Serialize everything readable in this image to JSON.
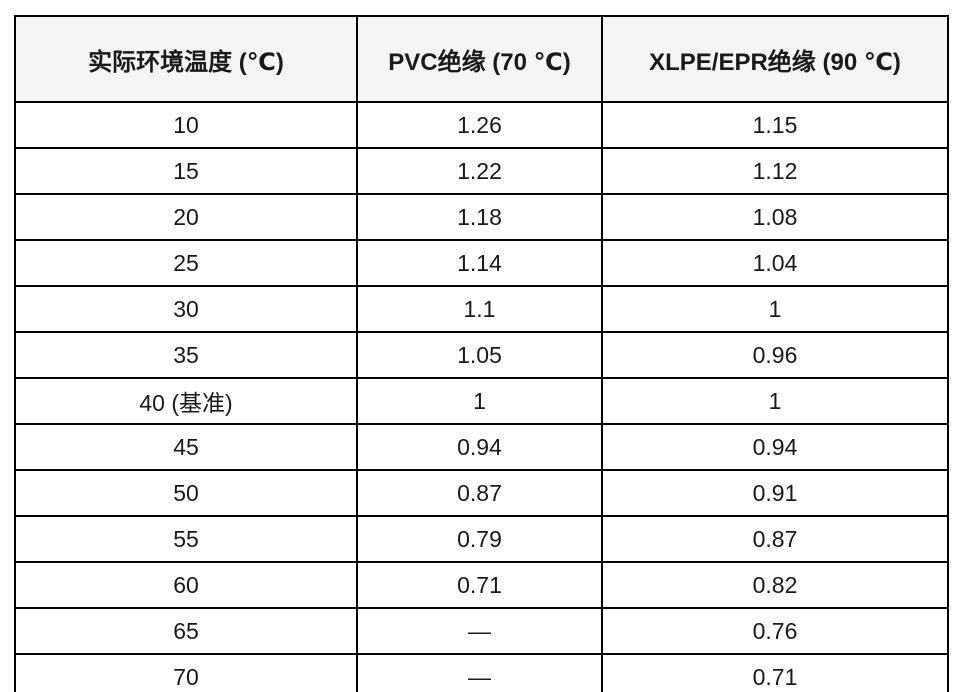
{
  "chart_data": {
    "type": "table",
    "title": "",
    "headers": [
      "实际环境温度 (℃)",
      "PVC绝缘 (70 ℃)",
      "XLPE/EPR绝缘 (90 ℃)"
    ],
    "rows": [
      [
        "10",
        "1.26",
        "1.15"
      ],
      [
        "15",
        "1.22",
        "1.12"
      ],
      [
        "20",
        "1.18",
        "1.08"
      ],
      [
        "25",
        "1.14",
        "1.04"
      ],
      [
        "30",
        "1.1",
        "1"
      ],
      [
        "35",
        "1.05",
        "0.96"
      ],
      [
        "40 (基准)",
        "1",
        "1"
      ],
      [
        "45",
        "0.94",
        "0.94"
      ],
      [
        "50",
        "0.87",
        "0.91"
      ],
      [
        "55",
        "0.79",
        "0.87"
      ],
      [
        "60",
        "0.71",
        "0.82"
      ],
      [
        "65",
        "—",
        "0.76"
      ],
      [
        "70",
        "—",
        "0.71"
      ]
    ],
    "missing_value_glyph": "—"
  },
  "colors": {
    "header_background": "#f5f5f5",
    "border": "#000000",
    "text": "#1a1a1a",
    "page_background": "#ffffff"
  }
}
